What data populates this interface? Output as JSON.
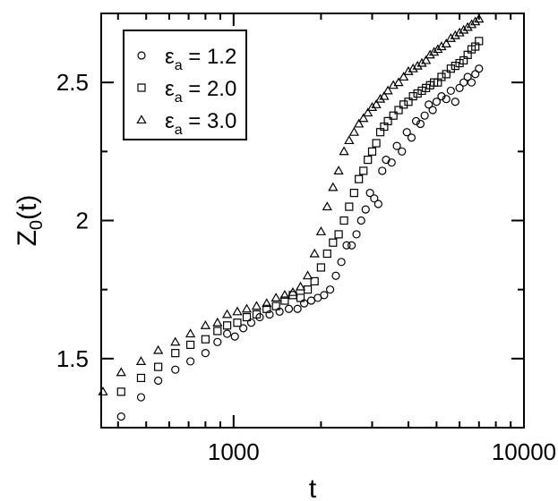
{
  "chart_data": {
    "type": "scatter",
    "title": "",
    "xlabel": "t",
    "ylabel": "Z_0(t)",
    "xscale": "log",
    "xlim": [
      350,
      10000
    ],
    "ylim": [
      1.25,
      2.75
    ],
    "grid": false,
    "legend_position": "top-left",
    "x_ticks": [
      {
        "value": 1000,
        "label": "1000"
      },
      {
        "value": 10000,
        "label": "10000"
      }
    ],
    "y_ticks": [
      {
        "value": 1.5,
        "label": "1.5"
      },
      {
        "value": 2.0,
        "label": "2"
      },
      {
        "value": 2.5,
        "label": "2.5"
      }
    ],
    "series": [
      {
        "name": "ε_a = 1.2",
        "legend_symbol": "ε",
        "legend_subscript": "a",
        "legend_value": " = 1.2",
        "marker": "circle",
        "x": [
          410,
          480,
          550,
          630,
          710,
          800,
          880,
          950,
          1010,
          1080,
          1150,
          1230,
          1330,
          1440,
          1550,
          1660,
          1750,
          1850,
          1950,
          2050,
          2150,
          2250,
          2350,
          2450,
          2550,
          2650,
          2750,
          2850,
          2950,
          3050,
          3150,
          3250,
          3350,
          3500,
          3650,
          3800,
          3950,
          4100,
          4250,
          4400,
          4550,
          4700,
          4850,
          5000,
          5200,
          5400,
          5600,
          5800,
          6000,
          6200,
          6400,
          6600,
          6800,
          7000
        ],
        "y": [
          1.29,
          1.36,
          1.42,
          1.46,
          1.49,
          1.52,
          1.56,
          1.59,
          1.58,
          1.61,
          1.63,
          1.65,
          1.66,
          1.67,
          1.68,
          1.68,
          1.7,
          1.71,
          1.72,
          1.73,
          1.75,
          1.8,
          1.85,
          1.91,
          1.91,
          1.95,
          2.0,
          2.04,
          2.1,
          2.08,
          2.06,
          2.18,
          2.22,
          2.21,
          2.27,
          2.25,
          2.32,
          2.3,
          2.36,
          2.35,
          2.38,
          2.42,
          2.4,
          2.43,
          2.45,
          2.44,
          2.47,
          2.43,
          2.48,
          2.5,
          2.52,
          2.5,
          2.53,
          2.55
        ]
      },
      {
        "name": "ε_a = 2.0",
        "legend_symbol": "ε",
        "legend_subscript": "a",
        "legend_value": " = 2.0",
        "marker": "square",
        "x": [
          410,
          480,
          550,
          630,
          710,
          800,
          880,
          950,
          1030,
          1110,
          1200,
          1300,
          1400,
          1500,
          1600,
          1700,
          1800,
          1900,
          2000,
          2100,
          2200,
          2300,
          2400,
          2500,
          2600,
          2700,
          2800,
          2900,
          3000,
          3100,
          3200,
          3300,
          3400,
          3550,
          3700,
          3850,
          4000,
          4150,
          4300,
          4450,
          4600,
          4750,
          4900,
          5050,
          5200,
          5400,
          5600,
          5800,
          6000,
          6200,
          6400,
          6600,
          6800,
          7000
        ],
        "y": [
          1.38,
          1.43,
          1.47,
          1.52,
          1.55,
          1.57,
          1.6,
          1.62,
          1.63,
          1.65,
          1.66,
          1.68,
          1.69,
          1.71,
          1.73,
          1.72,
          1.75,
          1.78,
          1.83,
          1.88,
          1.92,
          1.95,
          2.0,
          2.05,
          2.1,
          2.15,
          2.18,
          2.22,
          2.25,
          2.28,
          2.32,
          2.34,
          2.36,
          2.38,
          2.4,
          2.42,
          2.43,
          2.45,
          2.46,
          2.47,
          2.48,
          2.49,
          2.5,
          2.5,
          2.52,
          2.53,
          2.55,
          2.56,
          2.57,
          2.58,
          2.6,
          2.62,
          2.63,
          2.65
        ]
      },
      {
        "name": "ε_a = 3.0",
        "legend_symbol": "ε",
        "legend_subscript": "a",
        "legend_value": " = 3.0",
        "marker": "triangle",
        "x": [
          355,
          410,
          480,
          550,
          630,
          710,
          800,
          880,
          950,
          1030,
          1110,
          1200,
          1300,
          1400,
          1500,
          1600,
          1700,
          1800,
          1900,
          2000,
          2100,
          2200,
          2300,
          2400,
          2500,
          2600,
          2700,
          2800,
          2900,
          3000,
          3100,
          3200,
          3300,
          3400,
          3550,
          3700,
          3850,
          4000,
          4150,
          4300,
          4450,
          4600,
          4750,
          4900,
          5050,
          5200,
          5400,
          5600,
          5800,
          6000,
          6200,
          6400,
          6600,
          6800,
          7000
        ],
        "y": [
          1.38,
          1.45,
          1.49,
          1.53,
          1.56,
          1.59,
          1.62,
          1.63,
          1.66,
          1.67,
          1.68,
          1.69,
          1.7,
          1.72,
          1.73,
          1.74,
          1.76,
          1.8,
          1.88,
          1.96,
          2.05,
          2.12,
          2.18,
          2.25,
          2.29,
          2.32,
          2.35,
          2.37,
          2.39,
          2.41,
          2.42,
          2.44,
          2.45,
          2.47,
          2.49,
          2.5,
          2.52,
          2.54,
          2.55,
          2.56,
          2.57,
          2.58,
          2.6,
          2.61,
          2.62,
          2.63,
          2.64,
          2.66,
          2.67,
          2.68,
          2.69,
          2.7,
          2.71,
          2.72,
          2.73
        ]
      }
    ]
  }
}
